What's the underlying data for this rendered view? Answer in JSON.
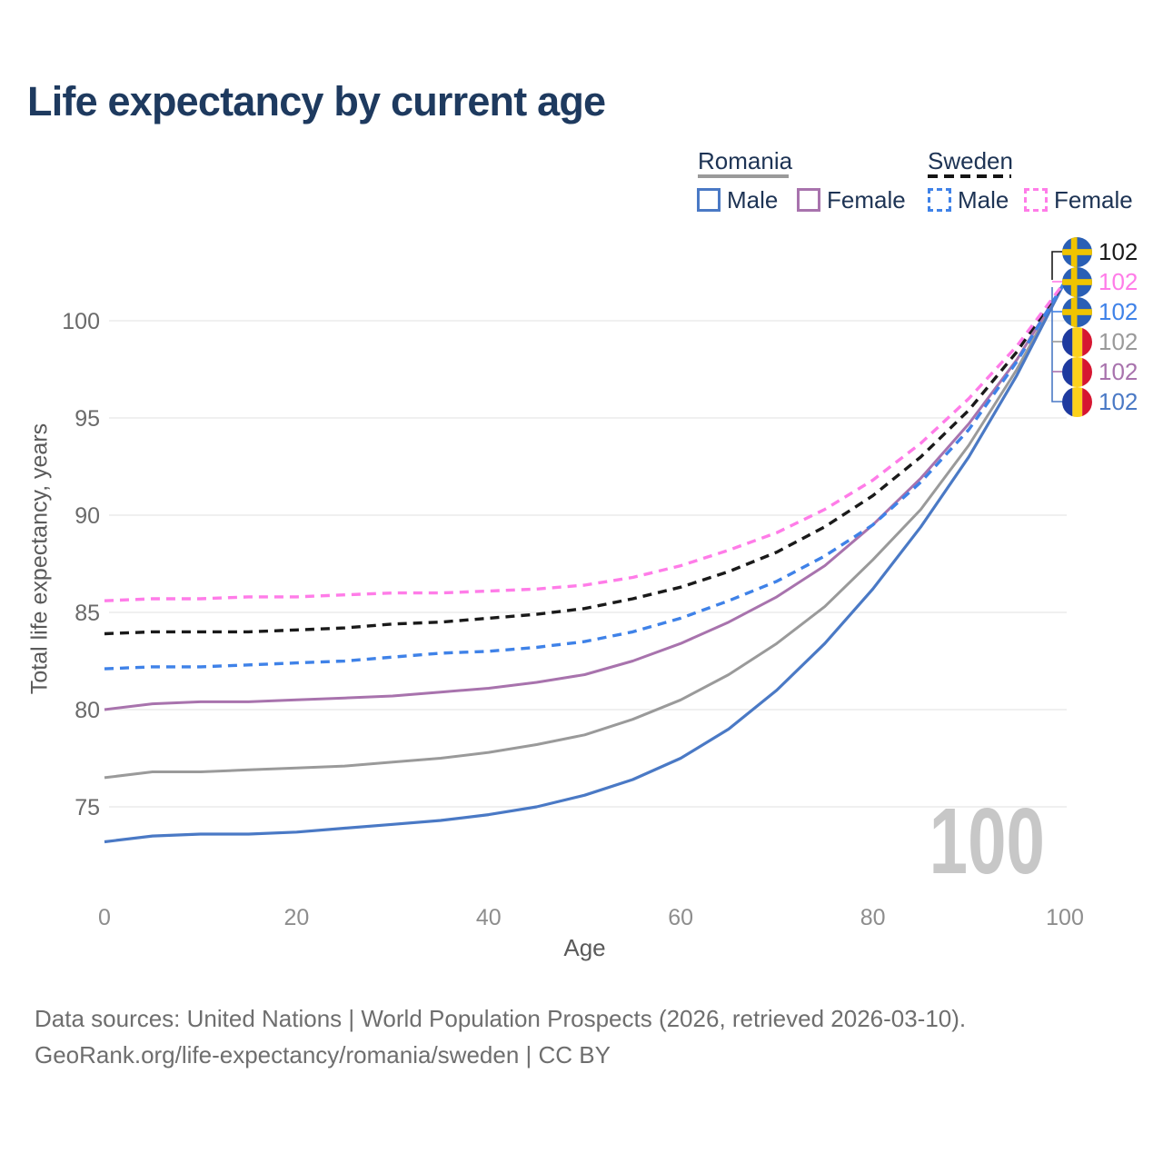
{
  "header": {
    "title": "Life expectancy by current age"
  },
  "legend": {
    "romania": {
      "label": "Romania",
      "male": "Male",
      "female": "Female"
    },
    "sweden": {
      "label": "Sweden",
      "male": "Male",
      "female": "Female"
    }
  },
  "axes": {
    "y_label": "Total life expectancy, years",
    "x_label": "Age",
    "y_ticks": [
      75,
      80,
      85,
      90,
      95,
      100
    ],
    "x_ticks": [
      0,
      20,
      40,
      60,
      80,
      100
    ]
  },
  "age_indicator": "100",
  "endpoints": [
    {
      "country": "sweden",
      "series": "sweden-total",
      "value": "102",
      "color": "#1a1a1a"
    },
    {
      "country": "sweden",
      "series": "sweden-female",
      "value": "102",
      "color": "#ff7ce8"
    },
    {
      "country": "sweden",
      "series": "sweden-male",
      "value": "102",
      "color": "#3f82e8"
    },
    {
      "country": "romania",
      "series": "romania-total",
      "value": "102",
      "color": "#9a9a9a"
    },
    {
      "country": "romania",
      "series": "romania-female",
      "value": "102",
      "color": "#a873ad"
    },
    {
      "country": "romania",
      "series": "romania-male",
      "value": "102",
      "color": "#4a79c5"
    }
  ],
  "flags": {
    "sweden": {
      "bg": "#2a5fb5",
      "cross": "#f0c400"
    },
    "romania": {
      "stripes": [
        "#1e3a9f",
        "#fcd11b",
        "#d61631"
      ]
    }
  },
  "footer": {
    "line1": "Data sources: United Nations | World Population Prospects (2026, retrieved 2026-03-10).",
    "line2": "GeoRank.org/life-expectancy/romania/sweden | CC BY"
  },
  "chart_data": {
    "type": "line",
    "title": "Life expectancy by current age",
    "xlabel": "Age",
    "ylabel": "Total life expectancy, years",
    "xlim": [
      0,
      100
    ],
    "ylim": [
      71.5,
      103.3
    ],
    "grid": "horizontal",
    "legend_position": "top-right",
    "x": [
      0,
      5,
      10,
      15,
      20,
      25,
      30,
      35,
      40,
      45,
      50,
      55,
      60,
      65,
      70,
      75,
      80,
      85,
      90,
      95,
      100
    ],
    "series": [
      {
        "id": "romania-total",
        "name": "Romania",
        "style": "solid",
        "color": "#9a9a9a",
        "width": 3,
        "values": [
          76.5,
          76.8,
          76.8,
          76.9,
          77.0,
          77.1,
          77.3,
          77.5,
          77.8,
          78.2,
          78.7,
          79.5,
          80.5,
          81.8,
          83.4,
          85.3,
          87.7,
          90.3,
          93.6,
          97.5,
          102
        ]
      },
      {
        "id": "romania-female",
        "name": "Romania Female",
        "style": "solid",
        "color": "#a873ad",
        "width": 3,
        "values": [
          80.0,
          80.3,
          80.4,
          80.4,
          80.5,
          80.6,
          80.7,
          80.9,
          81.1,
          81.4,
          81.8,
          82.5,
          83.4,
          84.5,
          85.8,
          87.4,
          89.5,
          91.9,
          94.7,
          98.0,
          102
        ]
      },
      {
        "id": "romania-male",
        "name": "Romania Male",
        "style": "solid",
        "color": "#4a79c5",
        "width": 3.2,
        "values": [
          73.2,
          73.5,
          73.6,
          73.6,
          73.7,
          73.9,
          74.1,
          74.3,
          74.6,
          75.0,
          75.6,
          76.4,
          77.5,
          79.0,
          81.0,
          83.4,
          86.2,
          89.4,
          93.0,
          97.2,
          102
        ]
      },
      {
        "id": "sweden-total",
        "name": "Sweden",
        "style": "dashed",
        "color": "#1a1a1a",
        "width": 3.4,
        "values": [
          83.9,
          84.0,
          84.0,
          84.0,
          84.1,
          84.2,
          84.4,
          84.5,
          84.7,
          84.9,
          85.2,
          85.7,
          86.3,
          87.1,
          88.1,
          89.4,
          91.0,
          93.0,
          95.4,
          98.4,
          102
        ]
      },
      {
        "id": "sweden-male",
        "name": "Sweden Male",
        "style": "dashed",
        "color": "#3f82e8",
        "width": 3.4,
        "values": [
          82.1,
          82.2,
          82.2,
          82.3,
          82.4,
          82.5,
          82.7,
          82.9,
          83.0,
          83.2,
          83.5,
          84.0,
          84.7,
          85.6,
          86.6,
          87.9,
          89.5,
          91.7,
          94.4,
          97.9,
          102
        ]
      },
      {
        "id": "sweden-female",
        "name": "Sweden Female",
        "style": "dashed",
        "color": "#ff7ce8",
        "width": 3.4,
        "values": [
          85.6,
          85.7,
          85.7,
          85.8,
          85.8,
          85.9,
          86.0,
          86.0,
          86.1,
          86.2,
          86.4,
          86.8,
          87.4,
          88.2,
          89.1,
          90.3,
          91.8,
          93.7,
          96.0,
          98.7,
          102
        ]
      }
    ]
  }
}
